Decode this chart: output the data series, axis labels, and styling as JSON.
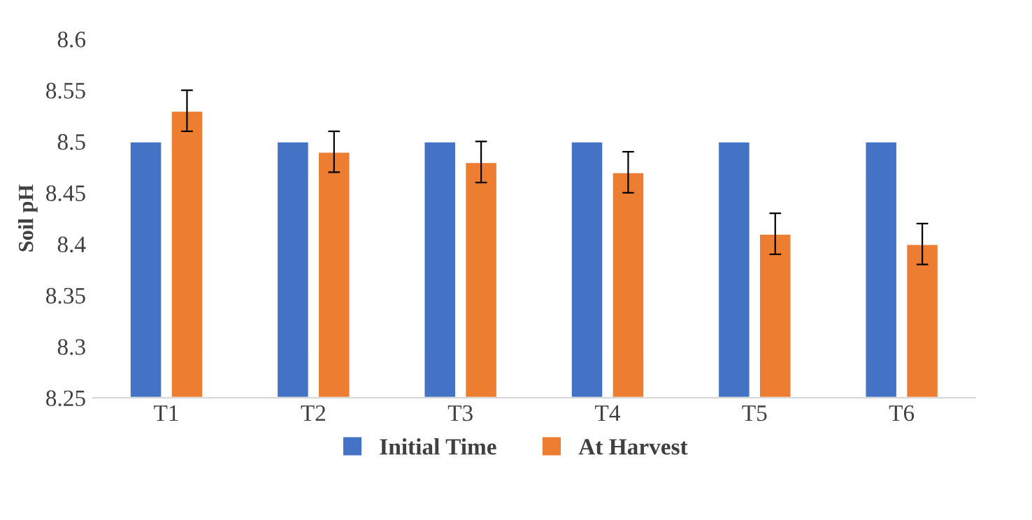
{
  "chart_data": {
    "type": "bar",
    "ylabel": "Soil pH",
    "categories": [
      "T1",
      "T2",
      "T3",
      "T4",
      "T5",
      "T6"
    ],
    "series": [
      {
        "name": "Initial Time",
        "color": "#4472c4",
        "values": [
          8.5,
          8.5,
          8.5,
          8.5,
          8.5,
          8.5
        ]
      },
      {
        "name": "At Harvest",
        "color": "#ed7d31",
        "values": [
          8.53,
          8.49,
          8.48,
          8.47,
          8.41,
          8.4
        ],
        "errors": [
          0.02,
          0.02,
          0.02,
          0.02,
          0.02,
          0.02
        ]
      }
    ],
    "ylim": [
      8.25,
      8.6
    ],
    "yticks": [
      8.25,
      8.3,
      8.35,
      8.4,
      8.45,
      8.5,
      8.55,
      8.6
    ],
    "grid": false,
    "legend": "bottom"
  }
}
